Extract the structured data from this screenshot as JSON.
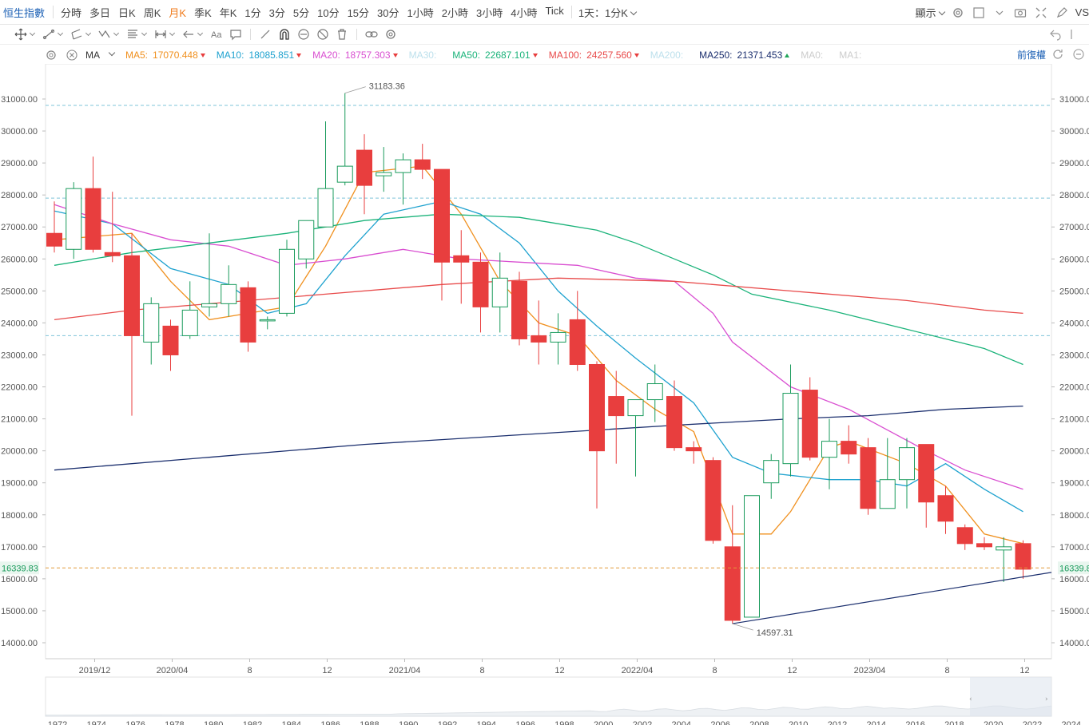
{
  "toolbar": {
    "index_name": "恒生指數",
    "periods": [
      "分時",
      "多日",
      "日K",
      "周K",
      "月K",
      "季K",
      "年K",
      "1分",
      "3分",
      "5分",
      "10分",
      "15分",
      "30分",
      "1小時",
      "2小時",
      "3小時",
      "4小時",
      "Tick"
    ],
    "active_period": "月K",
    "interval_select": "1天：1分K",
    "display_label": "顯示",
    "cut_label": "VS"
  },
  "legend": {
    "indicator": "MA",
    "fq_label": "前復權",
    "items": [
      {
        "name": "MA5:",
        "value": "17070.448",
        "color": "#f0901e",
        "trend": "down"
      },
      {
        "name": "MA10:",
        "value": "18085.851",
        "color": "#1fa2cf",
        "trend": "down"
      },
      {
        "name": "MA20:",
        "value": "18757.303",
        "color": "#d94fd1",
        "trend": "down"
      },
      {
        "name": "MA30:",
        "value": "",
        "color": "#bde0ec",
        "trend": ""
      },
      {
        "name": "MA50:",
        "value": "22687.101",
        "color": "#1bb37a",
        "trend": "down"
      },
      {
        "name": "MA100:",
        "value": "24257.560",
        "color": "#e84a4a",
        "trend": "down"
      },
      {
        "name": "MA200:",
        "value": "",
        "color": "#bde0ec",
        "trend": ""
      },
      {
        "name": "MA250:",
        "value": "21371.453",
        "color": "#1b2f6e",
        "trend": "up"
      },
      {
        "name": "MA0:",
        "value": "",
        "color": "#ccc",
        "trend": ""
      },
      {
        "name": "MA1:",
        "value": "",
        "color": "#ccc",
        "trend": ""
      }
    ]
  },
  "chart_data": {
    "type": "candlestick",
    "y_ticks": [
      14000,
      15000,
      16000,
      17000,
      18000,
      19000,
      20000,
      21000,
      22000,
      23000,
      24000,
      25000,
      26000,
      27000,
      28000,
      29000,
      30000,
      31000
    ],
    "ylim": [
      13900,
      32100
    ],
    "x_labels": [
      {
        "label": "2019/12",
        "i": 2
      },
      {
        "label": "2020/04",
        "i": 6
      },
      {
        "label": "8",
        "i": 10
      },
      {
        "label": "12",
        "i": 14
      },
      {
        "label": "2021/04",
        "i": 18
      },
      {
        "label": "8",
        "i": 22
      },
      {
        "label": "12",
        "i": 26
      },
      {
        "label": "2022/04",
        "i": 30
      },
      {
        "label": "8",
        "i": 34
      },
      {
        "label": "12",
        "i": 38
      },
      {
        "label": "2023/04",
        "i": 42
      },
      {
        "label": "8",
        "i": 46
      },
      {
        "label": "12",
        "i": 50
      }
    ],
    "candles": [
      [
        26800,
        27800,
        26200,
        26400
      ],
      [
        26300,
        28400,
        26000,
        28200
      ],
      [
        28200,
        29200,
        26200,
        26300
      ],
      [
        26200,
        28100,
        25900,
        26100
      ],
      [
        26100,
        26800,
        21100,
        23600
      ],
      [
        23400,
        24800,
        22700,
        24600
      ],
      [
        23900,
        24100,
        22500,
        23000
      ],
      [
        23600,
        25300,
        23500,
        24400
      ],
      [
        24500,
        26800,
        24200,
        24600
      ],
      [
        24600,
        25800,
        24200,
        25200
      ],
      [
        25100,
        25300,
        23100,
        23400
      ],
      [
        24100,
        24200,
        23800,
        24100
      ],
      [
        24300,
        26600,
        24200,
        26300
      ],
      [
        26000,
        27200,
        25700,
        27200
      ],
      [
        27000,
        30300,
        27000,
        28200
      ],
      [
        28400,
        31183,
        28300,
        28900
      ],
      [
        29400,
        29900,
        27400,
        28300
      ],
      [
        28600,
        29500,
        28100,
        28700
      ],
      [
        28700,
        29300,
        27700,
        29100
      ],
      [
        29100,
        29600,
        28500,
        28800
      ],
      [
        28800,
        28800,
        24700,
        25900
      ],
      [
        26100,
        26900,
        24600,
        25900
      ],
      [
        25900,
        26200,
        23700,
        24500
      ],
      [
        24500,
        26200,
        23700,
        25400
      ],
      [
        25300,
        25600,
        23300,
        23500
      ],
      [
        23600,
        24700,
        22700,
        23400
      ],
      [
        23400,
        24300,
        22700,
        23700
      ],
      [
        24100,
        25000,
        22500,
        22700
      ],
      [
        22700,
        22800,
        18200,
        20000
      ],
      [
        21700,
        22500,
        19600,
        21100
      ],
      [
        21100,
        21600,
        19200,
        21600
      ],
      [
        21600,
        22700,
        20900,
        22100
      ],
      [
        21700,
        22200,
        20000,
        20100
      ],
      [
        20100,
        20300,
        19600,
        20000
      ],
      [
        19700,
        19800,
        17100,
        17200
      ],
      [
        17000,
        18300,
        14597,
        14700
      ],
      [
        14800,
        18600,
        14800,
        18600
      ],
      [
        19000,
        19900,
        18500,
        19700
      ],
      [
        19600,
        22700,
        19200,
        21800
      ],
      [
        21900,
        22300,
        19700,
        19800
      ],
      [
        19800,
        21000,
        18800,
        20300
      ],
      [
        20300,
        20800,
        19600,
        19900
      ],
      [
        20100,
        20400,
        18000,
        18200
      ],
      [
        18200,
        20400,
        18200,
        19100
      ],
      [
        19100,
        20400,
        18200,
        20100
      ],
      [
        20200,
        20200,
        17600,
        18400
      ],
      [
        18600,
        18900,
        17400,
        17800
      ],
      [
        17600,
        17700,
        16900,
        17100
      ],
      [
        17100,
        17300,
        16900,
        17000
      ],
      [
        16900,
        17300,
        15900,
        17000
      ],
      [
        17100,
        17200,
        16000,
        16300
      ]
    ],
    "ma_series": [
      {
        "name": "MA5",
        "color": "#f0901e",
        "values": [
          [
            0,
            26600
          ],
          [
            4,
            26800
          ],
          [
            6,
            25300
          ],
          [
            8,
            24100
          ],
          [
            10,
            24300
          ],
          [
            12,
            24500
          ],
          [
            14,
            26400
          ],
          [
            16,
            28700
          ],
          [
            19,
            28900
          ],
          [
            21,
            27400
          ],
          [
            23,
            25300
          ],
          [
            25,
            24000
          ],
          [
            27,
            23600
          ],
          [
            29,
            22200
          ],
          [
            31,
            21300
          ],
          [
            33,
            20600
          ],
          [
            35,
            17400
          ],
          [
            37,
            17400
          ],
          [
            38,
            18100
          ],
          [
            40,
            20100
          ],
          [
            41,
            20300
          ],
          [
            44,
            19600
          ],
          [
            46,
            18900
          ],
          [
            48,
            17400
          ],
          [
            50,
            17100
          ]
        ]
      },
      {
        "name": "MA10",
        "color": "#1fa2cf",
        "values": [
          [
            0,
            27500
          ],
          [
            3,
            27100
          ],
          [
            6,
            25700
          ],
          [
            9,
            25200
          ],
          [
            11,
            24300
          ],
          [
            13,
            24600
          ],
          [
            15,
            26100
          ],
          [
            17,
            27400
          ],
          [
            20,
            27800
          ],
          [
            22,
            27400
          ],
          [
            24,
            26500
          ],
          [
            26,
            25000
          ],
          [
            28,
            23900
          ],
          [
            30,
            22900
          ],
          [
            33,
            21500
          ],
          [
            35,
            19800
          ],
          [
            37,
            19300
          ],
          [
            40,
            19100
          ],
          [
            42,
            19100
          ],
          [
            44,
            18900
          ],
          [
            46,
            19600
          ],
          [
            48,
            18800
          ],
          [
            50,
            18100
          ]
        ]
      },
      {
        "name": "MA20",
        "color": "#d94fd1",
        "values": [
          [
            0,
            27700
          ],
          [
            3,
            27100
          ],
          [
            6,
            26600
          ],
          [
            9,
            26400
          ],
          [
            12,
            25800
          ],
          [
            15,
            26000
          ],
          [
            18,
            26300
          ],
          [
            21,
            26000
          ],
          [
            24,
            25900
          ],
          [
            27,
            25800
          ],
          [
            30,
            25400
          ],
          [
            32,
            25300
          ],
          [
            34,
            24300
          ],
          [
            35,
            23400
          ],
          [
            38,
            22000
          ],
          [
            41,
            21300
          ],
          [
            45,
            20000
          ],
          [
            47,
            19400
          ],
          [
            50,
            18800
          ]
        ]
      },
      {
        "name": "MA50",
        "color": "#1bb37a",
        "values": [
          [
            0,
            25800
          ],
          [
            4,
            26200
          ],
          [
            8,
            26500
          ],
          [
            12,
            26800
          ],
          [
            16,
            27200
          ],
          [
            20,
            27400
          ],
          [
            24,
            27300
          ],
          [
            26,
            27100
          ],
          [
            28,
            26900
          ],
          [
            30,
            26500
          ],
          [
            32,
            26000
          ],
          [
            34,
            25500
          ],
          [
            36,
            24900
          ],
          [
            40,
            24400
          ],
          [
            44,
            23800
          ],
          [
            48,
            23200
          ],
          [
            50,
            22700
          ]
        ]
      },
      {
        "name": "MA100",
        "color": "#e84a4a",
        "values": [
          [
            0,
            24100
          ],
          [
            4,
            24400
          ],
          [
            8,
            24600
          ],
          [
            14,
            24900
          ],
          [
            20,
            25200
          ],
          [
            26,
            25400
          ],
          [
            32,
            25300
          ],
          [
            38,
            25000
          ],
          [
            44,
            24700
          ],
          [
            48,
            24400
          ],
          [
            50,
            24300
          ]
        ]
      },
      {
        "name": "MA250",
        "color": "#1b2f6e",
        "values": [
          [
            0,
            19400
          ],
          [
            8,
            19800
          ],
          [
            16,
            20200
          ],
          [
            24,
            20500
          ],
          [
            32,
            20800
          ],
          [
            38,
            21000
          ],
          [
            42,
            21100
          ],
          [
            46,
            21300
          ],
          [
            50,
            21400
          ]
        ]
      }
    ],
    "support_line": [
      [
        35,
        14597
      ],
      [
        51,
        16200
      ]
    ],
    "dashed_levels": [
      30800,
      27900,
      23600
    ],
    "current_price": 16339.83,
    "annotations": [
      {
        "text": "31183.36",
        "i": 15,
        "value": 31183.36
      },
      {
        "text": "14597.31",
        "i": 35,
        "value": 14597.31
      }
    ],
    "overview_years": [
      "1972",
      "1974",
      "1976",
      "1978",
      "1980",
      "1982",
      "1984",
      "1986",
      "1988",
      "1990",
      "1992",
      "1994",
      "1996",
      "1998",
      "2000",
      "2002",
      "2004",
      "2006",
      "2008",
      "2010",
      "2012",
      "2014",
      "2016",
      "2018",
      "2020",
      "2022",
      "2024"
    ]
  },
  "price_tag": "16339.83",
  "colors": {
    "up": "#e83e3e",
    "down_stroke": "#1a9b5c",
    "accent": "#f07a1a"
  }
}
